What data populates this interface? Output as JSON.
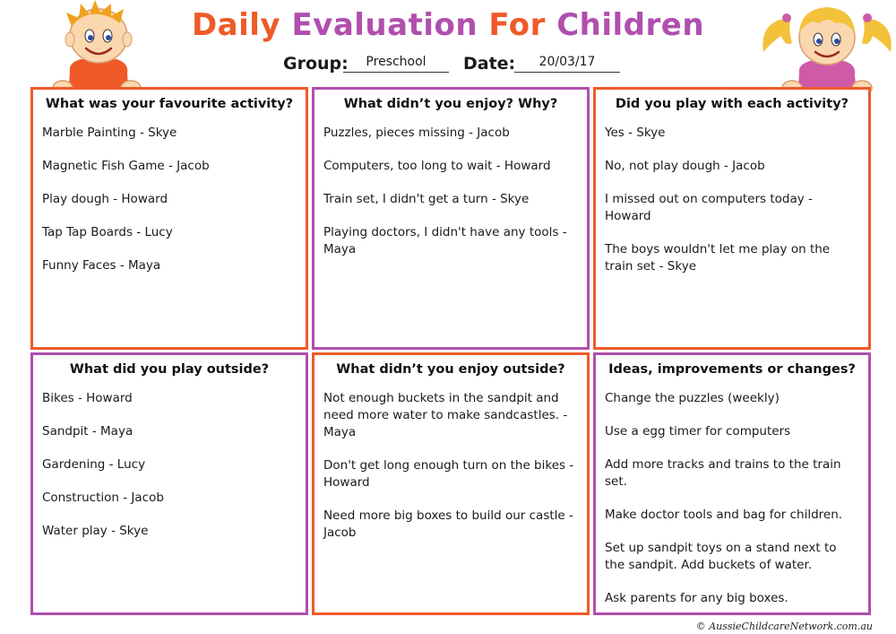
{
  "title_parts": [
    {
      "text": "Daily ",
      "color": "#ef5a28"
    },
    {
      "text": "Evaluation ",
      "color": "#b04fad"
    },
    {
      "text": "For ",
      "color": "#ef5a28"
    },
    {
      "text": "Children",
      "color": "#b04fad"
    }
  ],
  "header": {
    "group_label": "Group:",
    "group_value": "Preschool",
    "date_label": "Date:",
    "date_value": "20/03/17"
  },
  "boxes": [
    {
      "heading": "What was your favourite activity?",
      "border": "#ef5a28",
      "items": [
        "Marble Painting - Skye",
        "Magnetic Fish Game - Jacob",
        "Play dough - Howard",
        "Tap Tap Boards - Lucy",
        "Funny Faces - Maya"
      ]
    },
    {
      "heading": "What didn’t you enjoy? Why?",
      "border": "#b04fad",
      "items": [
        "Puzzles, pieces missing - Jacob",
        "Computers, too long to wait - Howard",
        "Train set, I didn't get a turn - Skye",
        "Playing doctors, I didn't have any tools - Maya"
      ]
    },
    {
      "heading": "Did you play with each activity?",
      "border": "#ef5a28",
      "items": [
        "Yes - Skye",
        "No, not play dough - Jacob",
        "I missed out on computers today - Howard",
        "The boys wouldn't let me play on the train set - Skye"
      ]
    },
    {
      "heading": "What did you play outside?",
      "border": "#b04fad",
      "items": [
        "Bikes - Howard",
        "Sandpit - Maya",
        "Gardening - Lucy",
        "Construction - Jacob",
        "Water play - Skye"
      ]
    },
    {
      "heading": "What didn’t you enjoy outside?",
      "border": "#ef5a28",
      "items": [
        "Not enough buckets in the sandpit and need more water to make sandcastles. - Maya",
        "Don't get long enough turn on the bikes - Howard",
        "Need more big boxes to build our castle - Jacob"
      ]
    },
    {
      "heading": "Ideas, improvements or changes?",
      "border": "#b04fad",
      "items": [
        "Change the puzzles (weekly)",
        "Use a egg timer for computers",
        "Add more tracks and trains to the train set.",
        "Make doctor tools and bag for children.",
        "Set up sandpit toys on a stand next to the sandpit. Add buckets of water.",
        "Ask parents for any big boxes."
      ]
    }
  ],
  "footer": {
    "copyright": "© AussieChildcareNetwork.com.au"
  },
  "icons": {
    "boy": "boy-character-icon",
    "girl": "girl-character-icon"
  }
}
